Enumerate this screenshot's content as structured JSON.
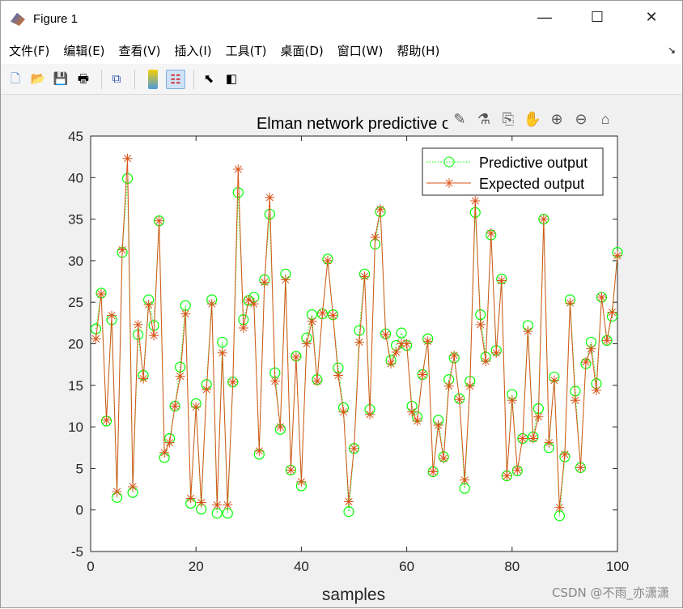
{
  "window": {
    "title": "Figure 1",
    "minimize": "—",
    "maximize": "☐",
    "close": "✕"
  },
  "menu": [
    "文件(F)",
    "编辑(E)",
    "查看(V)",
    "插入(I)",
    "工具(T)",
    "桌面(D)",
    "窗口(W)",
    "帮助(H)"
  ],
  "menu_arrow": "↘",
  "toolbar": [
    "new-figure-icon",
    "open-icon",
    "save-icon",
    "print-icon",
    "link-icon",
    "colorbar-icon",
    "legend-icon",
    "pointer-icon",
    "property-editor-icon"
  ],
  "axes_toolbar": [
    "brush-icon",
    "data-tip-icon",
    "export-icon",
    "pan-icon",
    "zoom-in-icon",
    "zoom-out-icon",
    "home-icon"
  ],
  "watermark": "CSDN @不雨_亦潇潇",
  "chart_data": {
    "type": "line",
    "title": "Elman network predictive o",
    "xlabel": "samples",
    "ylabel": "",
    "xlim": [
      0,
      100
    ],
    "ylim": [
      -5,
      45
    ],
    "xticks": [
      0,
      20,
      40,
      60,
      80,
      100
    ],
    "yticks": [
      -5,
      0,
      5,
      10,
      15,
      20,
      25,
      30,
      35,
      40,
      45
    ],
    "grid": false,
    "legend": "top-right",
    "x": [
      1,
      2,
      3,
      4,
      5,
      6,
      7,
      8,
      9,
      10,
      11,
      12,
      13,
      14,
      15,
      16,
      17,
      18,
      19,
      20,
      21,
      22,
      23,
      24,
      25,
      26,
      27,
      28,
      29,
      30,
      31,
      32,
      33,
      34,
      35,
      36,
      37,
      38,
      39,
      40,
      41,
      42,
      43,
      44,
      45,
      46,
      47,
      48,
      49,
      50,
      51,
      52,
      53,
      54,
      55,
      56,
      57,
      58,
      59,
      60,
      61,
      62,
      63,
      64,
      65,
      66,
      67,
      68,
      69,
      70,
      71,
      72,
      73,
      74,
      75,
      76,
      77,
      78,
      79,
      80,
      81,
      82,
      83,
      84,
      85,
      86,
      87,
      88,
      89,
      90,
      91,
      92,
      93,
      94,
      95,
      96,
      97,
      98,
      99,
      100
    ],
    "series": [
      {
        "name": "Predictive output",
        "color": "#00ff00",
        "values": [
          21.8,
          26.1,
          10.7,
          22.9,
          1.5,
          31,
          39.9,
          2.1,
          21.1,
          16.2,
          25.3,
          22.2,
          34.8,
          6.3,
          8.6,
          12.5,
          17.2,
          24.6,
          0.8,
          12.8,
          0.1,
          15.1,
          25.3,
          -0.4,
          20.2,
          -0.4,
          15.4,
          38.2,
          22.9,
          25.2,
          25.6,
          6.7,
          27.7,
          35.6,
          16.5,
          9.7,
          28.4,
          4.8,
          18.5,
          2.9,
          20.7,
          23.5,
          15.7,
          23.6,
          30.2,
          23.5,
          17.1,
          12.3,
          -0.2,
          7.4,
          21.6,
          28.4,
          12.1,
          32,
          35.9,
          21.2,
          18,
          19.8,
          21.3,
          19.8,
          12.5,
          11.2,
          16.3,
          20.6,
          4.6,
          10.8,
          6.4,
          15.7,
          18.3,
          13.4,
          2.6,
          15.5,
          35.8,
          23.5,
          18.4,
          33.1,
          19.2,
          27.8,
          4.1,
          13.9,
          4.7,
          8.6,
          22.2,
          8.8,
          12.2,
          35,
          7.5,
          16,
          -0.7,
          6.4,
          25.3,
          14.3,
          5.1,
          17.6,
          20.2,
          15.2,
          25.6,
          20.4,
          23.3,
          31
        ]
      },
      {
        "name": "Expected output",
        "color": "#d95319",
        "values": [
          20.6,
          26,
          10.8,
          23.4,
          2.2,
          31.3,
          42.3,
          2.8,
          22.3,
          15.8,
          24.7,
          21,
          34.8,
          6.9,
          8.1,
          12.5,
          16.1,
          23.6,
          1.4,
          12.4,
          0.9,
          14.5,
          24.8,
          0.6,
          18.9,
          0.6,
          15.4,
          41,
          21.9,
          25.3,
          24.8,
          7.1,
          27.4,
          37.6,
          15.5,
          10,
          27.7,
          4.8,
          18.4,
          3.4,
          20,
          22.7,
          15.5,
          23.7,
          30,
          23.4,
          16.2,
          11.8,
          1,
          7.4,
          20.2,
          28.1,
          11.5,
          32.8,
          36.2,
          21.1,
          17.6,
          19,
          20,
          20,
          11.8,
          10.7,
          16.3,
          20.3,
          4.6,
          10.2,
          6.2,
          14.9,
          18.6,
          13.3,
          3.6,
          14.9,
          37.2,
          22.3,
          17.9,
          33.3,
          18.9,
          27.6,
          4.1,
          13.2,
          4.8,
          8.6,
          21.5,
          8.6,
          11.2,
          35,
          8.1,
          15.6,
          0.3,
          6.7,
          24.9,
          13.2,
          5.1,
          17.8,
          19.4,
          14.4,
          25.6,
          20.4,
          23.8,
          30.6
        ]
      }
    ]
  }
}
